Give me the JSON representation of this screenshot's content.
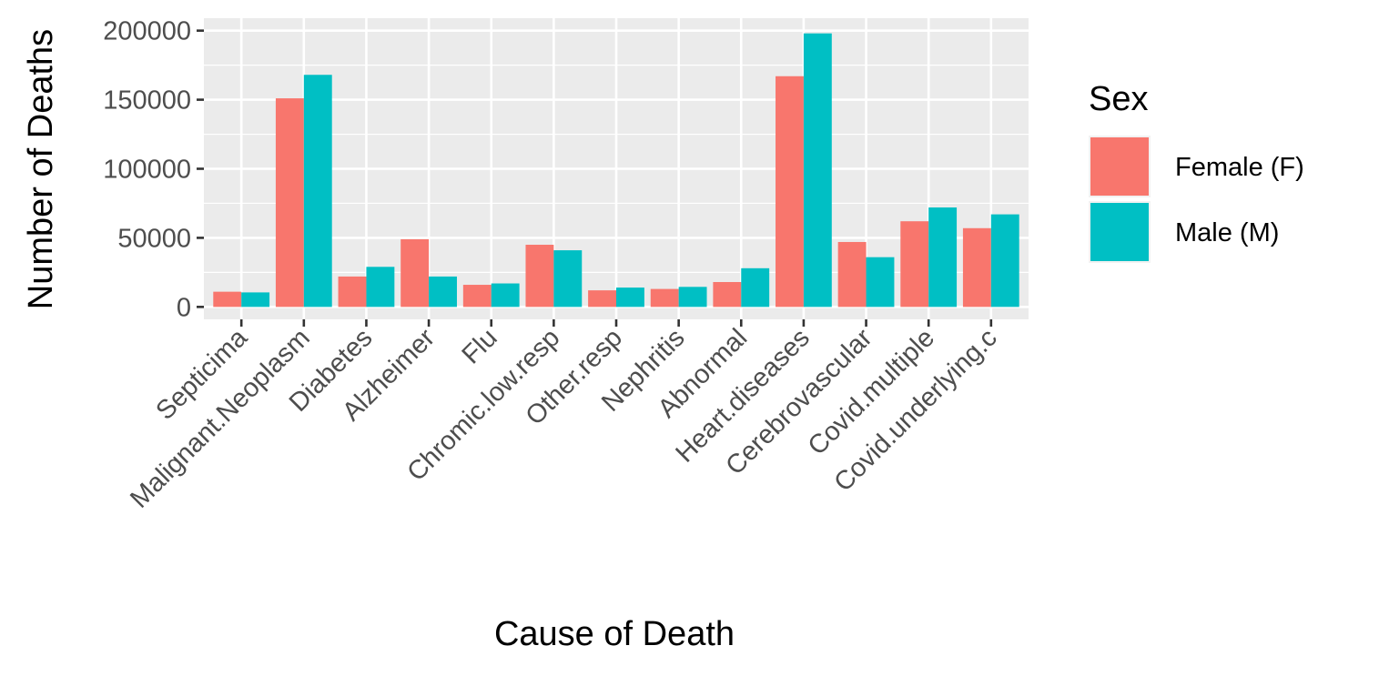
{
  "chart_data": {
    "type": "bar",
    "xlabel": "Cause of Death",
    "ylabel": "Number of Deaths",
    "categories": [
      "Septicima",
      "Malignant.Neoplasm",
      "Diabetes",
      "Alzheimer",
      "Flu",
      "Chromic.low.resp",
      "Other.resp",
      "Nephritis",
      "Abnormal",
      "Heart.diseases",
      "Cerebrovascular",
      "Covid.multiple",
      "Covid.underlying.c"
    ],
    "series": [
      {
        "name": "Female (F)",
        "color": "#f8766d",
        "values": [
          11000,
          151000,
          22000,
          49000,
          16000,
          45000,
          12000,
          13000,
          18000,
          167000,
          47000,
          62000,
          57000
        ]
      },
      {
        "name": "Male (M)",
        "color": "#00bfc4",
        "values": [
          10500,
          168000,
          29000,
          22000,
          17000,
          41000,
          14000,
          14500,
          28000,
          198000,
          36000,
          72000,
          67000
        ]
      }
    ],
    "yticks": [
      0,
      50000,
      100000,
      150000,
      200000
    ],
    "ylim": [
      -9000,
      209000
    ],
    "legend": {
      "title": "Sex",
      "position": "right"
    },
    "grid": true,
    "panel_background": "#ebebeb",
    "grid_color": "#ffffff"
  }
}
